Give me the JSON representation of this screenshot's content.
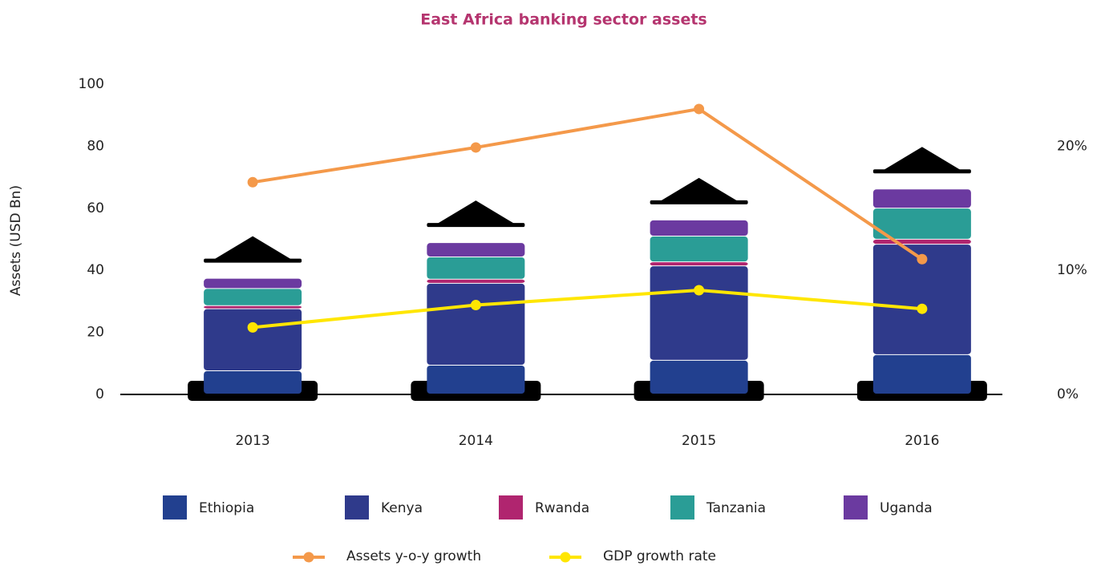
{
  "chart_data": {
    "type": "bar",
    "stacked": true,
    "title": "East Africa banking sector assets",
    "y_label": "Assets (USD Bn)",
    "categories": [
      "2013",
      "2014",
      "2015",
      "2016"
    ],
    "ylim": [
      0,
      100
    ],
    "yticks": [
      0,
      20,
      40,
      60,
      80,
      100
    ],
    "y2lim": [
      0,
      25
    ],
    "y2ticks": [
      {
        "value": 0,
        "label": "0%"
      },
      {
        "value": 10,
        "label": "10%"
      },
      {
        "value": 20,
        "label": "20%"
      }
    ],
    "series": [
      {
        "name": "Ethiopia",
        "color": "#22408f",
        "values": [
          7.5,
          9.3,
          10.9,
          12.7
        ]
      },
      {
        "name": "Kenya",
        "color": "#2f3a8b",
        "values": [
          20,
          26.4,
          30.4,
          35.6
        ]
      },
      {
        "name": "Rwanda",
        "color": "#b0256f",
        "values": [
          1,
          1.3,
          1.3,
          1.6
        ]
      },
      {
        "name": "Tanzania",
        "color": "#2a9d96",
        "values": [
          5.5,
          7.2,
          8.3,
          10
        ]
      },
      {
        "name": "Uganda",
        "color": "#6b3aa0",
        "values": [
          3.3,
          4.6,
          5.2,
          6.2
        ]
      },
      {
        "name": "Assets y-o-y growth",
        "color": "#f4994a",
        "type": "line",
        "axis": "y2",
        "values": [
          17.1,
          19.9,
          23,
          10.9
        ]
      },
      {
        "name": "GDP growth rate",
        "color": "#ffe600",
        "type": "line",
        "axis": "y2",
        "values": [
          5.4,
          7.2,
          8.4,
          6.9
        ]
      }
    ]
  }
}
